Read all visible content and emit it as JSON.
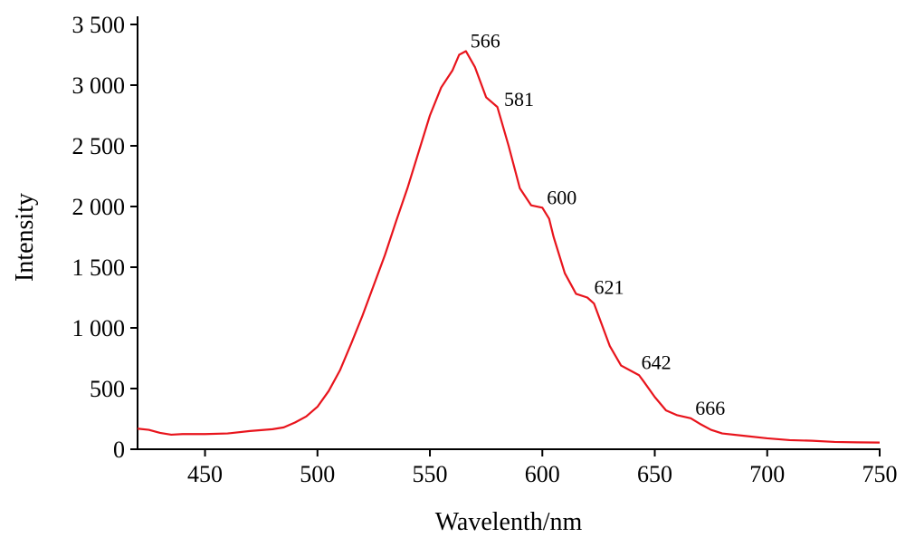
{
  "chart_data": {
    "type": "line",
    "x_label": "Wavelenth/nm",
    "y_label": "Intensity",
    "xlim": [
      420,
      750
    ],
    "ylim": [
      0,
      3500
    ],
    "xticks": [
      450,
      500,
      550,
      600,
      650,
      700,
      750
    ],
    "yticks": [
      0,
      500,
      {
        "value": 1000,
        "label": "1 000"
      },
      {
        "value": 1500,
        "label": "1 500"
      },
      {
        "value": 2000,
        "label": "2 000"
      },
      {
        "value": 2500,
        "label": "2 500"
      },
      {
        "value": 3000,
        "label": "3 000"
      },
      {
        "value": 3500,
        "label": "3 500"
      }
    ],
    "series": [
      {
        "color": "#e8141c",
        "x": [
          420,
          425,
          430,
          435,
          440,
          450,
          460,
          470,
          480,
          485,
          490,
          495,
          500,
          505,
          510,
          515,
          520,
          525,
          530,
          535,
          540,
          545,
          550,
          555,
          560,
          563,
          566,
          570,
          575,
          580,
          585,
          590,
          595,
          600,
          603,
          605,
          610,
          615,
          620,
          623,
          625,
          630,
          635,
          640,
          643,
          645,
          650,
          655,
          660,
          666,
          670,
          675,
          680,
          690,
          700,
          710,
          720,
          730,
          740,
          750
        ],
        "values": [
          170,
          160,
          135,
          120,
          125,
          125,
          130,
          150,
          165,
          180,
          220,
          270,
          350,
          480,
          650,
          870,
          1100,
          1350,
          1600,
          1880,
          2150,
          2450,
          2750,
          2980,
          3120,
          3250,
          3280,
          3150,
          2900,
          2820,
          2500,
          2150,
          2010,
          1990,
          1900,
          1750,
          1450,
          1280,
          1250,
          1200,
          1100,
          850,
          690,
          640,
          610,
          560,
          430,
          320,
          280,
          255,
          210,
          160,
          130,
          110,
          90,
          75,
          70,
          60,
          57,
          55
        ]
      }
    ],
    "annotations": [
      {
        "x": 566,
        "y": 3280
      },
      {
        "x": 581,
        "y": 2800
      },
      {
        "x": 600,
        "y": 1990
      },
      {
        "x": 621,
        "y": 1250
      },
      {
        "x": 642,
        "y": 630
      },
      {
        "x": 666,
        "y": 255
      }
    ]
  }
}
